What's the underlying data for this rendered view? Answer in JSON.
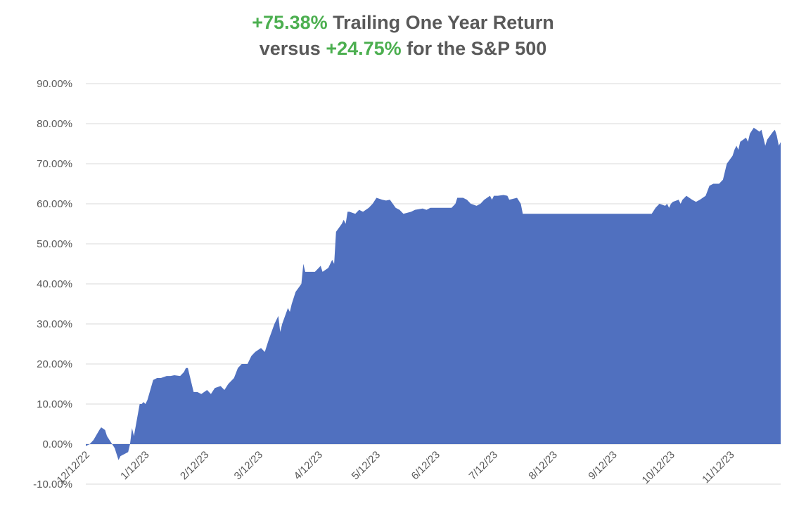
{
  "title": {
    "line1_highlight": "+75.38%",
    "line1_text": " Trailing One Year Return",
    "line2_text_a": "versus ",
    "line2_highlight": "+24.75%",
    "line2_text_b": " for the S&P 500"
  },
  "colors": {
    "fill": "#5070BF",
    "highlight": "#4CAF50",
    "title_text": "#595959",
    "grid": "#D9D9D9",
    "tick_text": "#595959"
  },
  "chart_data": {
    "type": "area",
    "title": "+75.38% Trailing One Year Return versus +24.75% for the S&P 500",
    "xlabel": "",
    "ylabel": "",
    "grid": true,
    "legend": "none",
    "ylim": [
      -0.1,
      0.9
    ],
    "y_ticks": [
      -0.1,
      0.0,
      0.1,
      0.2,
      0.3,
      0.4,
      0.5,
      0.6,
      0.7,
      0.8,
      0.9
    ],
    "y_tick_labels": [
      "-10.00%",
      "0.00%",
      "10.00%",
      "20.00%",
      "30.00%",
      "40.00%",
      "50.00%",
      "60.00%",
      "70.00%",
      "80.00%",
      "90.00%"
    ],
    "xlim": [
      "2022-12-12",
      "2023-12-08"
    ],
    "x_ticks": [
      "2022-12-12",
      "2023-01-12",
      "2023-02-12",
      "2023-03-12",
      "2023-04-12",
      "2023-05-12",
      "2023-06-12",
      "2023-07-12",
      "2023-08-12",
      "2023-09-12",
      "2023-10-12",
      "2023-11-12"
    ],
    "x_tick_labels": [
      "12/12/22",
      "1/12/23",
      "2/12/23",
      "3/12/23",
      "4/12/23",
      "5/12/23",
      "6/12/23",
      "7/12/23",
      "8/12/23",
      "9/12/23",
      "10/12/23",
      "11/12/23"
    ],
    "series": [
      {
        "points": [
          [
            "2022-12-12",
            -0.005
          ],
          [
            "2022-12-14",
            0.0
          ],
          [
            "2022-12-16",
            0.01
          ],
          [
            "2022-12-19",
            0.035
          ],
          [
            "2022-12-20",
            0.042
          ],
          [
            "2022-12-22",
            0.035
          ],
          [
            "2022-12-23",
            0.02
          ],
          [
            "2022-12-27",
            -0.01
          ],
          [
            "2022-12-28",
            -0.025
          ],
          [
            "2022-12-29",
            -0.04
          ],
          [
            "2022-12-30",
            -0.03
          ],
          [
            "2023-01-03",
            -0.02
          ],
          [
            "2023-01-04",
            0.0
          ],
          [
            "2023-01-05",
            0.04
          ],
          [
            "2023-01-06",
            0.02
          ],
          [
            "2023-01-09",
            0.1
          ],
          [
            "2023-01-10",
            0.1
          ],
          [
            "2023-01-11",
            0.105
          ],
          [
            "2023-01-12",
            0.1
          ],
          [
            "2023-01-13",
            0.11
          ],
          [
            "2023-01-16",
            0.16
          ],
          [
            "2023-01-18",
            0.165
          ],
          [
            "2023-01-20",
            0.165
          ],
          [
            "2023-01-23",
            0.17
          ],
          [
            "2023-01-25",
            0.17
          ],
          [
            "2023-01-27",
            0.172
          ],
          [
            "2023-01-30",
            0.17
          ],
          [
            "2023-02-01",
            0.18
          ],
          [
            "2023-02-02",
            0.19
          ],
          [
            "2023-02-03",
            0.19
          ],
          [
            "2023-02-06",
            0.13
          ],
          [
            "2023-02-08",
            0.13
          ],
          [
            "2023-02-10",
            0.125
          ],
          [
            "2023-02-13",
            0.135
          ],
          [
            "2023-02-15",
            0.125
          ],
          [
            "2023-02-17",
            0.14
          ],
          [
            "2023-02-20",
            0.145
          ],
          [
            "2023-02-22",
            0.135
          ],
          [
            "2023-02-24",
            0.15
          ],
          [
            "2023-02-27",
            0.165
          ],
          [
            "2023-03-01",
            0.19
          ],
          [
            "2023-03-03",
            0.2
          ],
          [
            "2023-03-06",
            0.2
          ],
          [
            "2023-03-08",
            0.22
          ],
          [
            "2023-03-10",
            0.23
          ],
          [
            "2023-03-13",
            0.24
          ],
          [
            "2023-03-15",
            0.23
          ],
          [
            "2023-03-17",
            0.26
          ],
          [
            "2023-03-20",
            0.3
          ],
          [
            "2023-03-22",
            0.32
          ],
          [
            "2023-03-23",
            0.28
          ],
          [
            "2023-03-24",
            0.3
          ],
          [
            "2023-03-27",
            0.34
          ],
          [
            "2023-03-28",
            0.33
          ],
          [
            "2023-03-29",
            0.35
          ],
          [
            "2023-03-31",
            0.38
          ],
          [
            "2023-04-03",
            0.4
          ],
          [
            "2023-04-04",
            0.45
          ],
          [
            "2023-04-05",
            0.43
          ],
          [
            "2023-04-07",
            0.43
          ],
          [
            "2023-04-10",
            0.43
          ],
          [
            "2023-04-12",
            0.44
          ],
          [
            "2023-04-13",
            0.445
          ],
          [
            "2023-04-14",
            0.43
          ],
          [
            "2023-04-17",
            0.44
          ],
          [
            "2023-04-19",
            0.46
          ],
          [
            "2023-04-20",
            0.45
          ],
          [
            "2023-04-21",
            0.53
          ],
          [
            "2023-04-24",
            0.55
          ],
          [
            "2023-04-25",
            0.56
          ],
          [
            "2023-04-26",
            0.55
          ],
          [
            "2023-04-27",
            0.58
          ],
          [
            "2023-04-28",
            0.58
          ],
          [
            "2023-05-01",
            0.575
          ],
          [
            "2023-05-03",
            0.585
          ],
          [
            "2023-05-05",
            0.58
          ],
          [
            "2023-05-08",
            0.59
          ],
          [
            "2023-05-10",
            0.6
          ],
          [
            "2023-05-12",
            0.615
          ],
          [
            "2023-05-15",
            0.61
          ],
          [
            "2023-05-17",
            0.608
          ],
          [
            "2023-05-19",
            0.61
          ],
          [
            "2023-05-22",
            0.59
          ],
          [
            "2023-05-24",
            0.585
          ],
          [
            "2023-05-26",
            0.575
          ],
          [
            "2023-05-30",
            0.58
          ],
          [
            "2023-06-01",
            0.585
          ],
          [
            "2023-06-05",
            0.588
          ],
          [
            "2023-06-07",
            0.585
          ],
          [
            "2023-06-09",
            0.59
          ],
          [
            "2023-06-12",
            0.59
          ],
          [
            "2023-06-14",
            0.59
          ],
          [
            "2023-06-16",
            0.59
          ],
          [
            "2023-06-20",
            0.59
          ],
          [
            "2023-06-22",
            0.6
          ],
          [
            "2023-06-23",
            0.615
          ],
          [
            "2023-06-26",
            0.615
          ],
          [
            "2023-06-28",
            0.61
          ],
          [
            "2023-06-30",
            0.6
          ],
          [
            "2023-07-03",
            0.595
          ],
          [
            "2023-07-05",
            0.6
          ],
          [
            "2023-07-07",
            0.61
          ],
          [
            "2023-07-10",
            0.62
          ],
          [
            "2023-07-11",
            0.61
          ],
          [
            "2023-07-12",
            0.62
          ],
          [
            "2023-07-14",
            0.62
          ],
          [
            "2023-07-17",
            0.622
          ],
          [
            "2023-07-19",
            0.62
          ],
          [
            "2023-07-20",
            0.61
          ],
          [
            "2023-07-24",
            0.615
          ],
          [
            "2023-07-26",
            0.6
          ],
          [
            "2023-07-27",
            0.575
          ],
          [
            "2023-08-01",
            0.575
          ],
          [
            "2023-08-15",
            0.575
          ],
          [
            "2023-09-01",
            0.575
          ],
          [
            "2023-09-15",
            0.575
          ],
          [
            "2023-10-01",
            0.575
          ],
          [
            "2023-10-02",
            0.575
          ],
          [
            "2023-10-04",
            0.59
          ],
          [
            "2023-10-06",
            0.6
          ],
          [
            "2023-10-09",
            0.595
          ],
          [
            "2023-10-10",
            0.6
          ],
          [
            "2023-10-11",
            0.59
          ],
          [
            "2023-10-12",
            0.6
          ],
          [
            "2023-10-13",
            0.605
          ],
          [
            "2023-10-16",
            0.61
          ],
          [
            "2023-10-17",
            0.6
          ],
          [
            "2023-10-18",
            0.61
          ],
          [
            "2023-10-19",
            0.615
          ],
          [
            "2023-10-20",
            0.62
          ],
          [
            "2023-10-23",
            0.61
          ],
          [
            "2023-10-25",
            0.605
          ],
          [
            "2023-10-27",
            0.61
          ],
          [
            "2023-10-30",
            0.62
          ],
          [
            "2023-11-01",
            0.645
          ],
          [
            "2023-11-03",
            0.65
          ],
          [
            "2023-11-06",
            0.65
          ],
          [
            "2023-11-08",
            0.66
          ],
          [
            "2023-11-10",
            0.7
          ],
          [
            "2023-11-13",
            0.72
          ],
          [
            "2023-11-14",
            0.735
          ],
          [
            "2023-11-15",
            0.745
          ],
          [
            "2023-11-16",
            0.735
          ],
          [
            "2023-11-17",
            0.755
          ],
          [
            "2023-11-20",
            0.765
          ],
          [
            "2023-11-21",
            0.755
          ],
          [
            "2023-11-22",
            0.775
          ],
          [
            "2023-11-24",
            0.79
          ],
          [
            "2023-11-27",
            0.78
          ],
          [
            "2023-11-28",
            0.785
          ],
          [
            "2023-11-29",
            0.765
          ],
          [
            "2023-11-30",
            0.745
          ],
          [
            "2023-12-01",
            0.76
          ],
          [
            "2023-12-04",
            0.78
          ],
          [
            "2023-12-05",
            0.785
          ],
          [
            "2023-12-06",
            0.77
          ],
          [
            "2023-12-07",
            0.745
          ],
          [
            "2023-12-08",
            0.7538
          ]
        ]
      }
    ]
  }
}
